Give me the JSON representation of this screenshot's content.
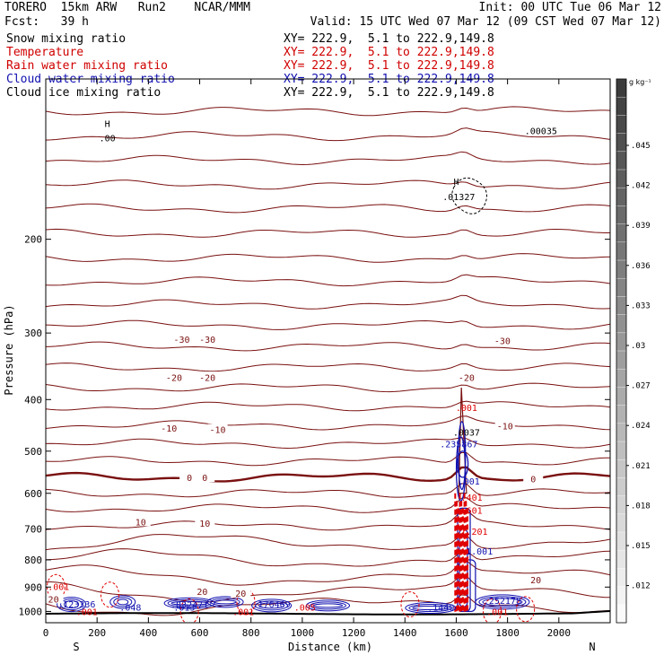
{
  "header": {
    "line1_left": "TORERO  15km ARW   Run2    NCAR/MMM",
    "line1_right": "Init: 00 UTC Tue 06 Mar 12",
    "line2_left": "Fcst:   39 h",
    "line2_right": "Valid: 15 UTC Wed 07 Mar 12 (09 CST Wed 07 Mar 12)"
  },
  "fields": [
    {
      "name": "Snow mixing ratio",
      "xy": "XY= 222.9,  5.1 to 222.9,149.8",
      "color": "#000000"
    },
    {
      "name": "Temperature",
      "xy": "XY= 222.9,  5.1 to 222.9,149.8",
      "color": "#d00000"
    },
    {
      "name": "Rain water mixing ratio",
      "xy": "XY= 222.9,  5.1 to 222.9,149.8",
      "color": "#d00000"
    },
    {
      "name": "Cloud water mixing ratio",
      "xy": "XY= 222.9,  5.1 to 222.9,149.8",
      "color": "#1010b0"
    },
    {
      "name": "Cloud ice mixing ratio",
      "xy": "XY= 222.9,  5.1 to 222.9,149.8",
      "color": "#000000"
    }
  ],
  "colors": {
    "temperature": "#7a1010",
    "rain": "#e00000",
    "cloud_water": "#1010b0",
    "snow": "#000000",
    "ground": "#000000"
  },
  "chart_data": {
    "type": "line",
    "xlabel": "Distance (km)",
    "ylabel": "Pressure (hPa)",
    "xlim": [
      0,
      2200
    ],
    "ylim": [
      1050,
      100
    ],
    "x_ticks": [
      0,
      200,
      400,
      600,
      800,
      1000,
      1200,
      1400,
      1600,
      1800,
      2000
    ],
    "y_ticks": [
      200,
      300,
      400,
      500,
      600,
      700,
      800,
      900,
      1000
    ],
    "y_scale": "log",
    "left_end_label": "S",
    "right_end_label": "N",
    "colorbar": {
      "unit": "g kg⁻¹",
      "ticks": [
        ".045",
        ".042",
        ".039",
        ".036",
        ".033",
        ".03",
        ".027",
        ".024",
        ".021",
        ".018",
        ".015",
        ".012"
      ]
    },
    "isotherm_labels": [
      {
        "text": "-30",
        "x": 530,
        "p": 308
      },
      {
        "text": "-30",
        "x": 630,
        "p": 308
      },
      {
        "text": "-30",
        "x": 1780,
        "p": 310
      },
      {
        "text": "-20",
        "x": 500,
        "p": 363
      },
      {
        "text": "-20",
        "x": 630,
        "p": 363
      },
      {
        "text": "-20",
        "x": 1640,
        "p": 363
      },
      {
        "text": "-10",
        "x": 480,
        "p": 452
      },
      {
        "text": "-10",
        "x": 670,
        "p": 455
      },
      {
        "text": "-10",
        "x": 1790,
        "p": 448
      },
      {
        "text": "0",
        "x": 560,
        "p": 560
      },
      {
        "text": "0",
        "x": 620,
        "p": 560
      },
      {
        "text": "0",
        "x": 1900,
        "p": 563
      },
      {
        "text": "10",
        "x": 370,
        "p": 678
      },
      {
        "text": "10",
        "x": 620,
        "p": 682
      },
      {
        "text": "20",
        "x": 610,
        "p": 916
      },
      {
        "text": "20",
        "x": 760,
        "p": 924
      },
      {
        "text": "20",
        "x": 1910,
        "p": 872
      },
      {
        "text": "20",
        "x": 30,
        "p": 947
      }
    ],
    "value_labels": [
      {
        "text": ".001",
        "x": 50,
        "p": 912,
        "color": "rain"
      },
      {
        "text": "H",
        "x": 240,
        "p": 123,
        "color": "snow"
      },
      {
        "text": ".00",
        "x": 240,
        "p": 131,
        "color": "snow"
      },
      {
        "text": "H",
        "x": 1600,
        "p": 158,
        "color": "snow"
      },
      {
        "text": ".01327",
        "x": 1610,
        "p": 169,
        "color": "snow"
      },
      {
        "text": ".00035",
        "x": 1930,
        "p": 127,
        "color": "snow"
      },
      {
        "text": ".0037",
        "x": 1640,
        "p": 468,
        "color": "snow"
      },
      {
        "text": ".235867",
        "x": 1610,
        "p": 492,
        "color": "cloud_water"
      },
      {
        "text": ".001",
        "x": 1640,
        "p": 420,
        "color": "rain"
      },
      {
        "text": ".001",
        "x": 1650,
        "p": 578,
        "color": "cloud_water"
      },
      {
        "text": ".401",
        "x": 1660,
        "p": 620,
        "color": "rain"
      },
      {
        "text": ".601",
        "x": 1660,
        "p": 655,
        "color": "rain"
      },
      {
        "text": "1.201",
        "x": 1670,
        "p": 718,
        "color": "rain"
      },
      {
        "text": "1.001",
        "x": 1690,
        "p": 782,
        "color": "cloud_water"
      },
      {
        "text": ".123336",
        "x": 120,
        "p": 983,
        "color": "cloud_water"
      },
      {
        "text": ".048",
        "x": 330,
        "p": 996,
        "color": "cloud_water"
      },
      {
        "text": ".832471",
        "x": 560,
        "p": 985,
        "color": "cloud_water"
      },
      {
        "text": ".013",
        "x": 540,
        "p": 997,
        "color": "cloud_water"
      },
      {
        "text": ".176469",
        "x": 880,
        "p": 983,
        "color": "cloud_water"
      },
      {
        "text": ".005",
        "x": 1010,
        "p": 996,
        "color": "rain"
      },
      {
        "text": ".1440",
        "x": 1540,
        "p": 996,
        "color": "cloud_water"
      },
      {
        "text": ".252178",
        "x": 1780,
        "p": 968,
        "color": "cloud_water"
      },
      {
        "text": ".001",
        "x": 160,
        "p": 1015,
        "color": "rain"
      },
      {
        "text": ".001",
        "x": 770,
        "p": 1015,
        "color": "rain"
      },
      {
        "text": ".001",
        "x": 1760,
        "p": 1015,
        "color": "rain"
      }
    ]
  }
}
